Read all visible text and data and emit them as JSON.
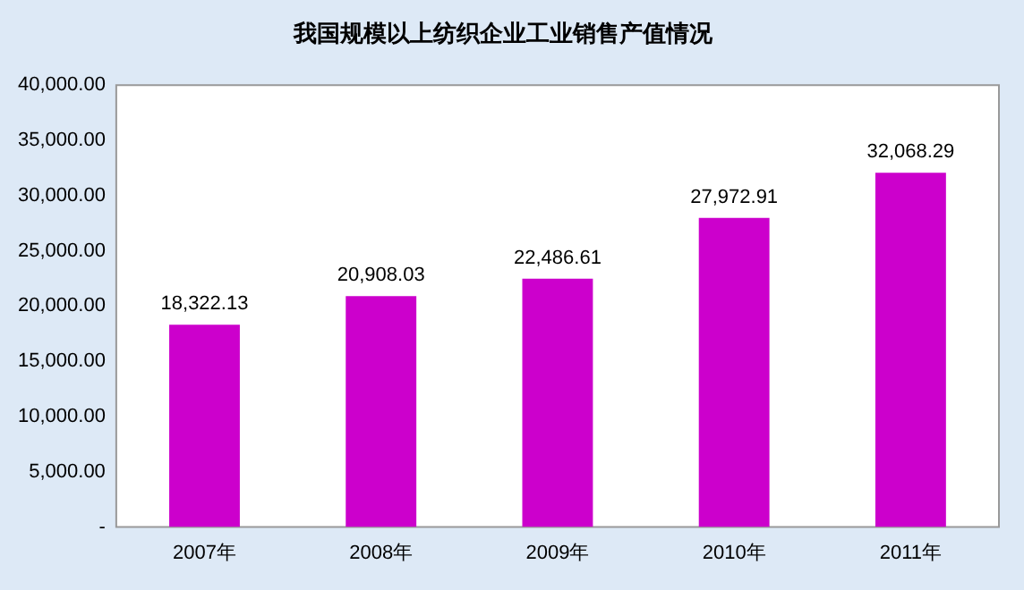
{
  "chart_data": {
    "type": "bar",
    "title": "我国规模以上纺织企业工业销售产值情况",
    "categories": [
      "2007年",
      "2008年",
      "2009年",
      "2010年",
      "2011年"
    ],
    "values": [
      18322.13,
      20908.03,
      22486.61,
      27972.91,
      32068.29
    ],
    "value_labels": [
      "18,322.13",
      "20,908.03",
      "22,486.61",
      "27,972.91",
      "32,068.29"
    ],
    "color": "#cc00cc",
    "ylim": [
      0,
      40000
    ],
    "yticks": [
      {
        "value": 0,
        "label": "-"
      },
      {
        "value": 5000,
        "label": "5,000.00"
      },
      {
        "value": 10000,
        "label": "10,000.00"
      },
      {
        "value": 15000,
        "label": "15,000.00"
      },
      {
        "value": 20000,
        "label": "20,000.00"
      },
      {
        "value": 25000,
        "label": "25,000.00"
      },
      {
        "value": 30000,
        "label": "30,000.00"
      },
      {
        "value": 35000,
        "label": "35,000.00"
      },
      {
        "value": 40000,
        "label": "40,000.00"
      }
    ],
    "grid": false,
    "legend": false
  }
}
